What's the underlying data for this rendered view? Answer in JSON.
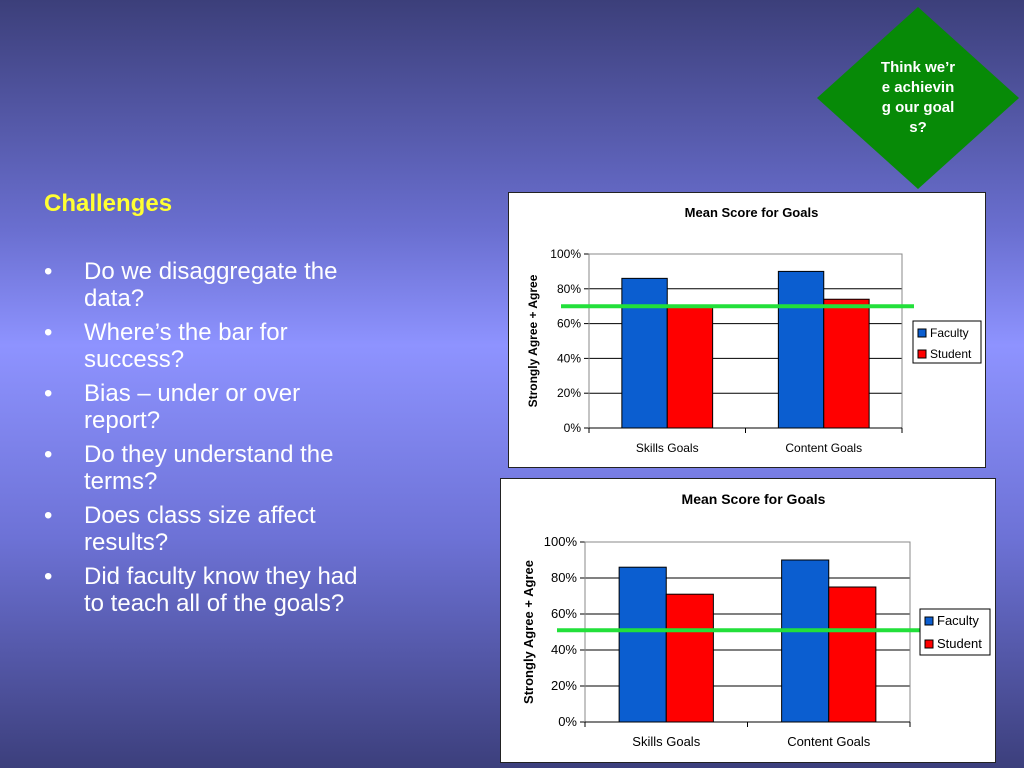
{
  "callout": {
    "text": "Think we’re achieving our goals?",
    "color": "#078a07"
  },
  "heading": "Challenges",
  "bullets": [
    "Do we disaggregate the data?",
    "Where’s the bar for success?",
    "Bias – under or over report?",
    "Do they understand the terms?",
    "Does class size affect results?",
    "Did faculty know they had to teach all of the goals?"
  ],
  "chart_data": [
    {
      "type": "bar",
      "title": "Mean Score for Goals",
      "ylabel": "Strongly Agree + Agree",
      "xlabel": "",
      "categories": [
        "Skills Goals",
        "Content Goals"
      ],
      "series": [
        {
          "name": "Faculty",
          "values": [
            0.86,
            0.9
          ],
          "color": "#0b5ed0"
        },
        {
          "name": "Student",
          "values": [
            0.7,
            0.74
          ],
          "color": "#ff0000"
        }
      ],
      "ylim": [
        0,
        1
      ],
      "yticks": [
        0,
        0.2,
        0.4,
        0.6,
        0.8,
        1.0
      ],
      "ytick_labels": [
        "0%",
        "20%",
        "40%",
        "60%",
        "80%",
        "100%"
      ],
      "reference_line": {
        "value": 0.7,
        "color": "#22e03a"
      },
      "legend": "right",
      "grid": true
    },
    {
      "type": "bar",
      "title": "Mean Score for Goals",
      "ylabel": "Strongly Agree + Agree",
      "xlabel": "",
      "categories": [
        "Skills Goals",
        "Content Goals"
      ],
      "series": [
        {
          "name": "Faculty",
          "values": [
            0.86,
            0.9
          ],
          "color": "#0b5ed0"
        },
        {
          "name": "Student",
          "values": [
            0.71,
            0.75
          ],
          "color": "#ff0000"
        }
      ],
      "ylim": [
        0,
        1
      ],
      "yticks": [
        0,
        0.2,
        0.4,
        0.6,
        0.8,
        1.0
      ],
      "ytick_labels": [
        "0%",
        "20%",
        "40%",
        "60%",
        "80%",
        "100%"
      ],
      "reference_line": {
        "value": 0.51,
        "color": "#22e03a"
      },
      "legend": "right",
      "grid": true
    }
  ]
}
